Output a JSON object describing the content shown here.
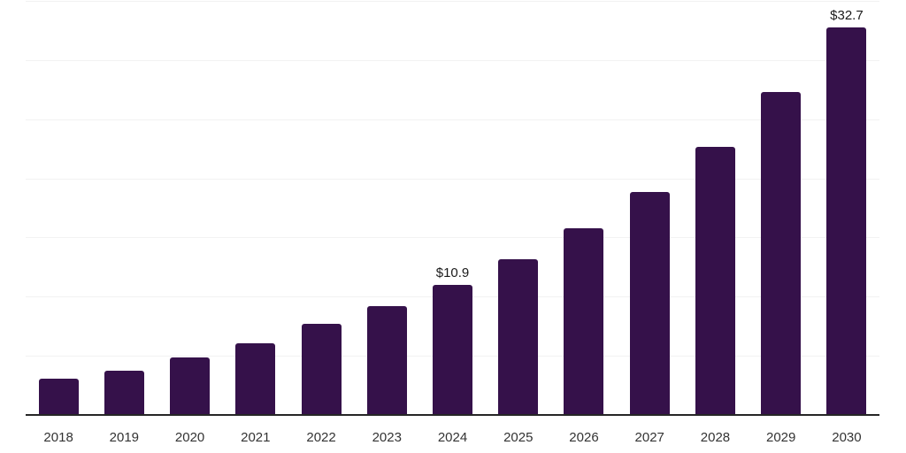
{
  "chart_data": {
    "type": "bar",
    "categories": [
      "2018",
      "2019",
      "2020",
      "2021",
      "2022",
      "2023",
      "2024",
      "2025",
      "2026",
      "2027",
      "2028",
      "2029",
      "2030"
    ],
    "values": [
      3.0,
      3.7,
      4.8,
      6.0,
      7.6,
      9.1,
      10.9,
      13.1,
      15.7,
      18.8,
      22.6,
      27.2,
      32.7
    ],
    "point_labels": [
      "",
      "",
      "",
      "",
      "",
      "",
      "$10.9",
      "",
      "",
      "",
      "",
      "",
      "$32.7"
    ],
    "title": "",
    "xlabel": "",
    "ylabel": "",
    "ylim": [
      0,
      35
    ],
    "gridline_step": 5,
    "grid": "horizontal-only",
    "legend": "none",
    "y_tick_labels_visible": false,
    "colors": {
      "bar": "#35114A",
      "gridline": "#F2F2F2",
      "axis_line": "#262626",
      "tick_label": "#333333",
      "value_label": "#1A1A1A",
      "background": "#FFFFFF"
    }
  }
}
